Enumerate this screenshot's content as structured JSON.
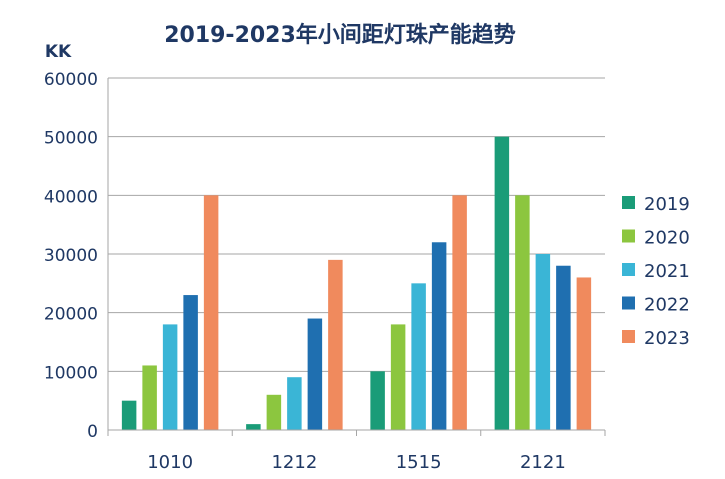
{
  "chart_data": {
    "type": "bar",
    "title": "2019-2023年小间距灯珠产能趋势",
    "ylabel": "KK",
    "xlabel": "",
    "categories": [
      "1010",
      "1212",
      "1515",
      "2121"
    ],
    "yticks": [
      "0",
      "10000",
      "20000",
      "30000",
      "40000",
      "50000",
      "60000"
    ],
    "ylim": [
      0,
      60000
    ],
    "grid": true,
    "legend_position": "right",
    "series": [
      {
        "name": "2019",
        "color": "#1a9c78",
        "values": [
          5000,
          1000,
          10000,
          50000
        ]
      },
      {
        "name": "2020",
        "color": "#8cc63f",
        "values": [
          11000,
          6000,
          18000,
          40000
        ]
      },
      {
        "name": "2021",
        "color": "#3ab5d6",
        "values": [
          18000,
          9000,
          25000,
          30000
        ]
      },
      {
        "name": "2022",
        "color": "#1f6fb0",
        "values": [
          23000,
          19000,
          32000,
          28000
        ]
      },
      {
        "name": "2023",
        "color": "#f08a5d",
        "values": [
          40000,
          29000,
          40000,
          26000
        ]
      }
    ]
  }
}
